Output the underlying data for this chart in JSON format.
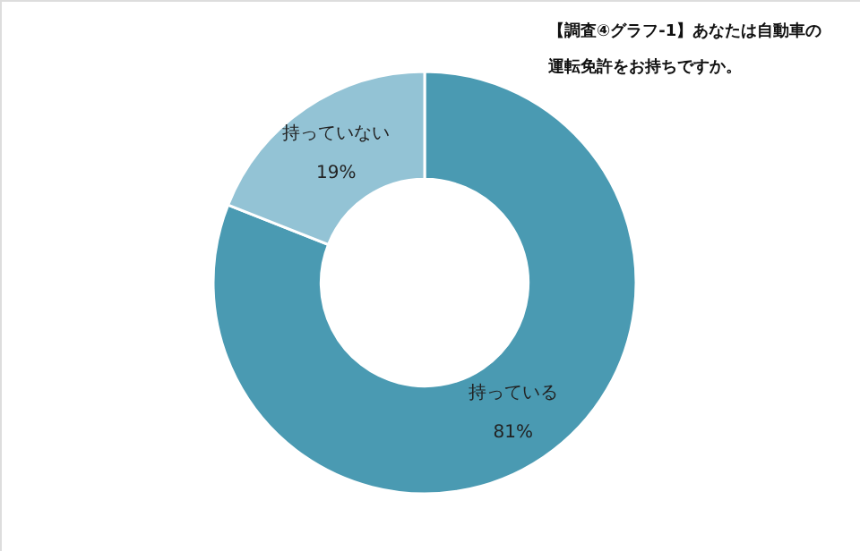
{
  "chart_data": {
    "type": "donut",
    "title": "【調査④グラフ-1】あなたは自動車の運転免許をお持ちですか。",
    "categories": [
      "持っている",
      "持っていない"
    ],
    "values": [
      81,
      19
    ],
    "value_labels": [
      "81%",
      "19%"
    ],
    "colors": [
      "#4a9ab2",
      "#93c3d5"
    ],
    "legend": false
  }
}
